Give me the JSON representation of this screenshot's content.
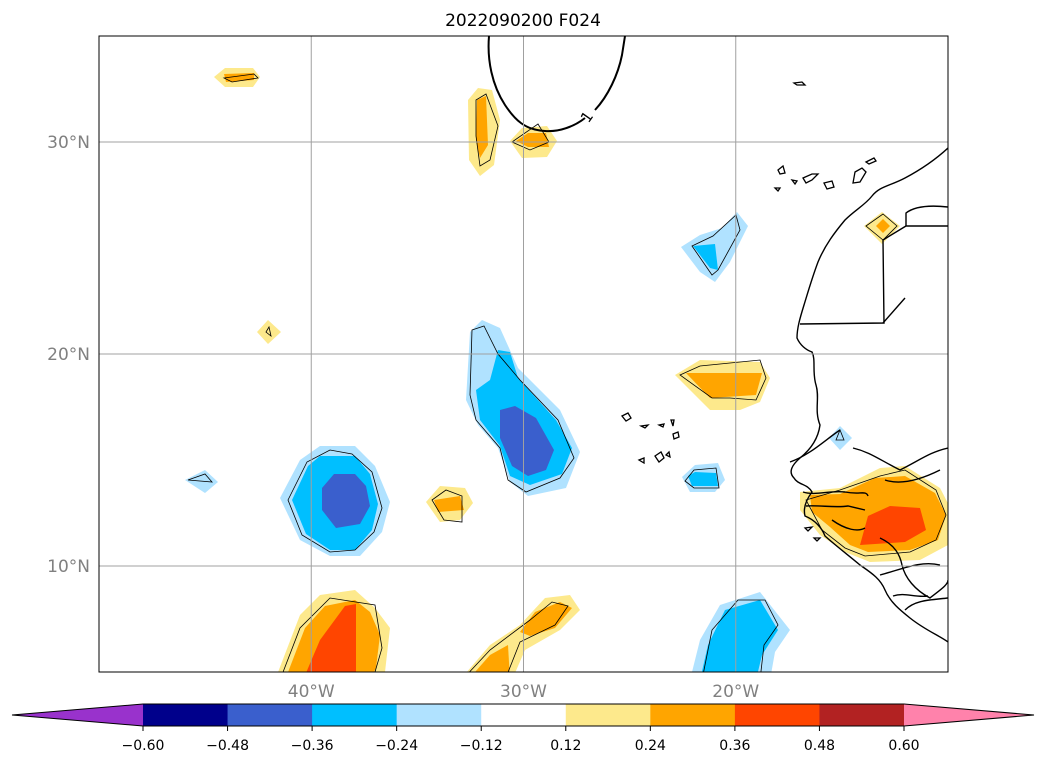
{
  "chart_data": {
    "type": "heatmap",
    "title": "2022090200 F024",
    "map": {
      "lon_range": [
        -50,
        -10
      ],
      "lat_range": [
        5,
        35
      ],
      "gridlines": true,
      "coastlines": true,
      "lon_ticks": [
        {
          "value": -40,
          "label": "40°W"
        },
        {
          "value": -30,
          "label": "30°W"
        },
        {
          "value": -20,
          "label": "20°W"
        }
      ],
      "lat_ticks": [
        {
          "value": 10,
          "label": "10°N"
        },
        {
          "value": 20,
          "label": "20°N"
        },
        {
          "value": 30,
          "label": "30°N"
        }
      ]
    },
    "contour_label": "1",
    "colorbar": {
      "orientation": "horizontal",
      "extend": "both",
      "levels": [
        -0.6,
        -0.48,
        -0.36,
        -0.24,
        -0.12,
        0.12,
        0.24,
        0.36,
        0.48,
        0.6
      ],
      "tick_labels": [
        "−0.60",
        "−0.48",
        "−0.36",
        "−0.24",
        "−0.12",
        "0.12",
        "0.24",
        "0.36",
        "0.48",
        "0.60"
      ],
      "colors": [
        "#9932cc",
        "#00008b",
        "#3a5fcd",
        "#00bfff",
        "#b0e2ff",
        "#ffffff",
        "#fde98c",
        "#ffa500",
        "#ff4500",
        "#b22222",
        "#ff82ab"
      ]
    }
  }
}
